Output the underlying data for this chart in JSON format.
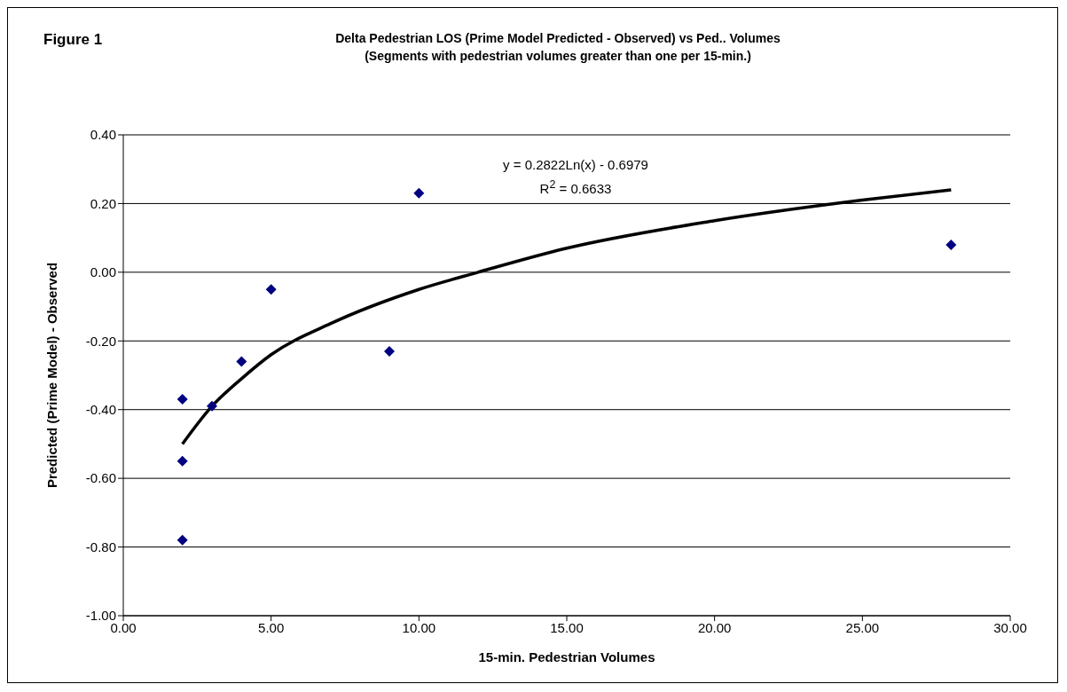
{
  "chart_data": {
    "type": "scatter",
    "title": "Delta Pedestrian LOS (Prime Model Predicted - Observed) vs  Ped.. Volumes",
    "subtitle": "(Segments with pedestrian volumes greater than one per 15-min.)",
    "xlabel": "15-min. Pedestrian Volumes",
    "ylabel": "Predicted (Prime Model) - Observed",
    "annotations": [
      "Figure 1",
      "y = 0.2822Ln(x) - 0.6979",
      "R$^{2}$ = 0.6633"
    ],
    "xlim": [
      0,
      30
    ],
    "xticks": [
      {
        "value": 0,
        "label": "0.00"
      },
      {
        "value": 5,
        "label": "5.00"
      },
      {
        "value": 10,
        "label": "10.00"
      },
      {
        "value": 15,
        "label": "15.00"
      },
      {
        "value": 20,
        "label": "20.00"
      },
      {
        "value": 25,
        "label": "25.00"
      },
      {
        "value": 30,
        "label": "30.00"
      }
    ],
    "ylim": [
      -1,
      0.4
    ],
    "yticks": [
      {
        "value": -1,
        "label": "-1.00"
      },
      {
        "value": -0.8,
        "label": "-0.80"
      },
      {
        "value": -0.6,
        "label": "-0.60"
      },
      {
        "value": -0.4,
        "label": "-0.40"
      },
      {
        "value": -0.2,
        "label": "-0.20"
      },
      {
        "value": 0,
        "label": "0.00"
      },
      {
        "value": 0.2,
        "label": "0.20"
      },
      {
        "value": 0.4,
        "label": "0.40"
      }
    ],
    "grid": "y",
    "marker": "diamond",
    "series": [
      {
        "color": "#000080",
        "x": [
          2,
          2,
          2,
          3,
          4,
          5,
          9,
          10,
          28
        ],
        "values": [
          -0.37,
          -0.55,
          -0.78,
          -0.39,
          -0.26,
          -0.05,
          -0.23,
          0.23,
          0.08
        ]
      },
      {
        "type": "line",
        "color": "#000000",
        "marker": "none",
        "line_style": "solid",
        "x": [
          2,
          3,
          4,
          5,
          7,
          10,
          12,
          15,
          20,
          25,
          28
        ],
        "values": [
          -0.5,
          -0.39,
          -0.31,
          -0.24,
          -0.15,
          -0.05,
          0,
          0.07,
          0.15,
          0.21,
          0.24
        ]
      }
    ]
  }
}
